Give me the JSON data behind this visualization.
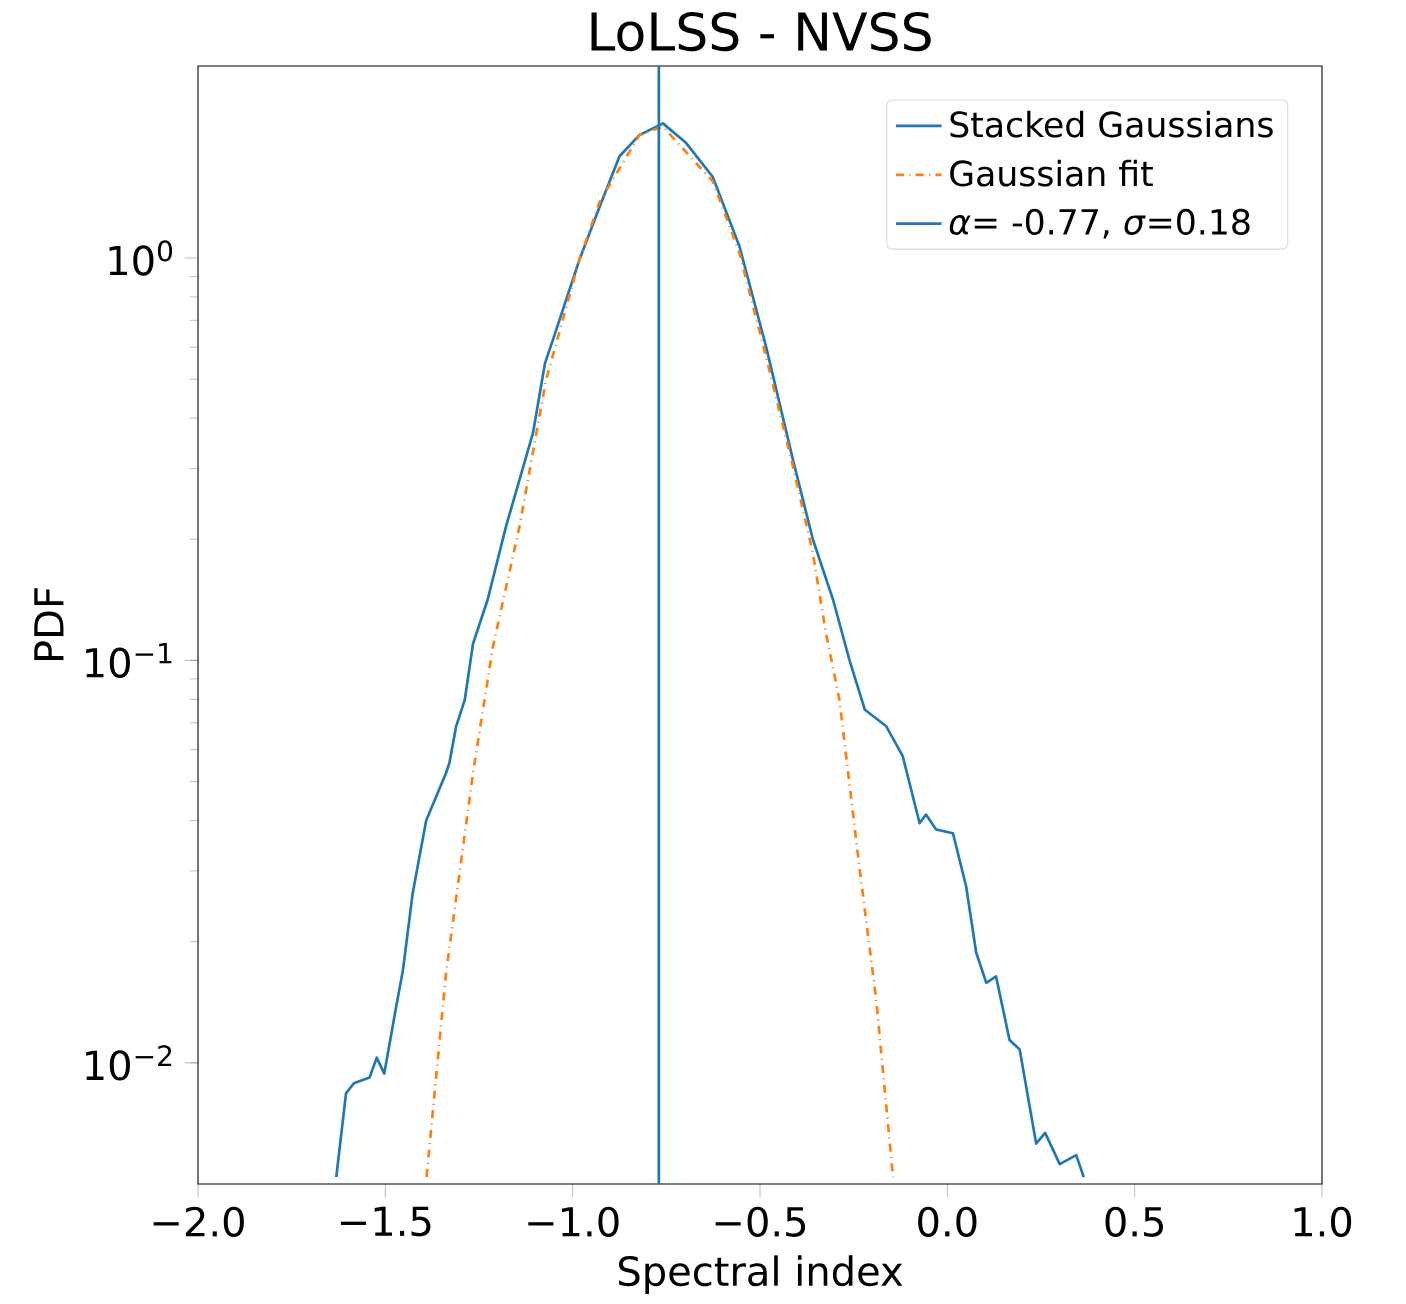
{
  "chart_data": {
    "type": "line",
    "title": "LoLSS - NVSS",
    "xlabel": "Spectral index",
    "ylabel": "PDF",
    "log": "y",
    "legend": "top right",
    "xlim": [
      -2.0,
      1.0
    ],
    "ylim": [
      0.005,
      3
    ],
    "xticks": [
      {
        "value": -2.0,
        "label": "−2.0"
      },
      {
        "value": -1.5,
        "label": "−1.5"
      },
      {
        "value": -1.0,
        "label": "−1.0"
      },
      {
        "value": -0.5,
        "label": "−0.5"
      },
      {
        "value": 0.0,
        "label": "0.0"
      },
      {
        "value": 0.5,
        "label": "0.5"
      },
      {
        "value": 1.0,
        "label": "1.0"
      }
    ],
    "yticks": [
      {
        "value": 0.01,
        "label": "10$^{−2}$"
      },
      {
        "value": 0.1,
        "label": "10$^{−1}$"
      },
      {
        "value": 1,
        "label": "10$^{0}$"
      }
    ],
    "series": [
      {
        "name": "Stacked Gaussians",
        "color": "#1f77b4",
        "line_style": "solid",
        "x": [
          -1.631,
          -1.605,
          -1.584,
          -1.542,
          -1.523,
          -1.503,
          -1.471,
          -1.453,
          -1.427,
          -1.391,
          -1.338,
          -1.329,
          -1.311,
          -1.288,
          -1.266,
          -1.227,
          -1.178,
          -1.106,
          -1.074,
          -1.053,
          -0.982,
          -0.928,
          -0.875,
          -0.822,
          -0.759,
          -0.697,
          -0.626,
          -0.555,
          -0.484,
          -0.412,
          -0.359,
          -0.305,
          -0.261,
          -0.22,
          -0.163,
          -0.119,
          -0.074,
          -0.057,
          -0.03,
          0.015,
          0.05,
          0.077,
          0.104,
          0.13,
          0.166,
          0.193,
          0.237,
          0.261,
          0.3,
          0.344,
          0.364
        ],
        "values": [
          0.0052,
          0.0084,
          0.0089,
          0.0092,
          0.0103,
          0.0094,
          0.0138,
          0.017,
          0.0264,
          0.04,
          0.0525,
          0.0556,
          0.0686,
          0.0798,
          0.11,
          0.1415,
          0.215,
          0.367,
          0.547,
          0.625,
          0.99,
          1.34,
          1.79,
          2.02,
          2.16,
          1.93,
          1.59,
          1.07,
          0.603,
          0.315,
          0.2,
          0.1415,
          0.1,
          0.0754,
          0.0686,
          0.0578,
          0.0394,
          0.0414,
          0.038,
          0.0372,
          0.0275,
          0.0188,
          0.0158,
          0.0164,
          0.0114,
          0.0108,
          0.0063,
          0.0067,
          0.0056,
          0.0059,
          0.0052
        ]
      },
      {
        "name": "Gaussian fit",
        "color": "#ff7f0e",
        "line_style": "dashdot",
        "x": [
          -1.39,
          -1.338,
          -1.266,
          -1.213,
          -1.142,
          -1.071,
          -0.982,
          -0.928,
          -0.822,
          -0.759,
          -0.626,
          -0.555,
          -0.484,
          -0.412,
          -0.359,
          -0.324,
          -0.288,
          -0.235,
          -0.19,
          -0.145
        ],
        "values": [
          0.0052,
          0.0167,
          0.0525,
          0.108,
          0.215,
          0.498,
          0.99,
          1.38,
          2.02,
          2.12,
          1.55,
          1.03,
          0.569,
          0.303,
          0.185,
          0.117,
          0.0798,
          0.0308,
          0.0144,
          0.0052
        ]
      },
      {
        "name": "*α*= -0.77, *σ*=0.18",
        "color": "#1f77b4",
        "line_style": "solid",
        "x": [
          -0.77,
          -0.77
        ],
        "values": [
          0.005,
          3
        ]
      }
    ]
  }
}
